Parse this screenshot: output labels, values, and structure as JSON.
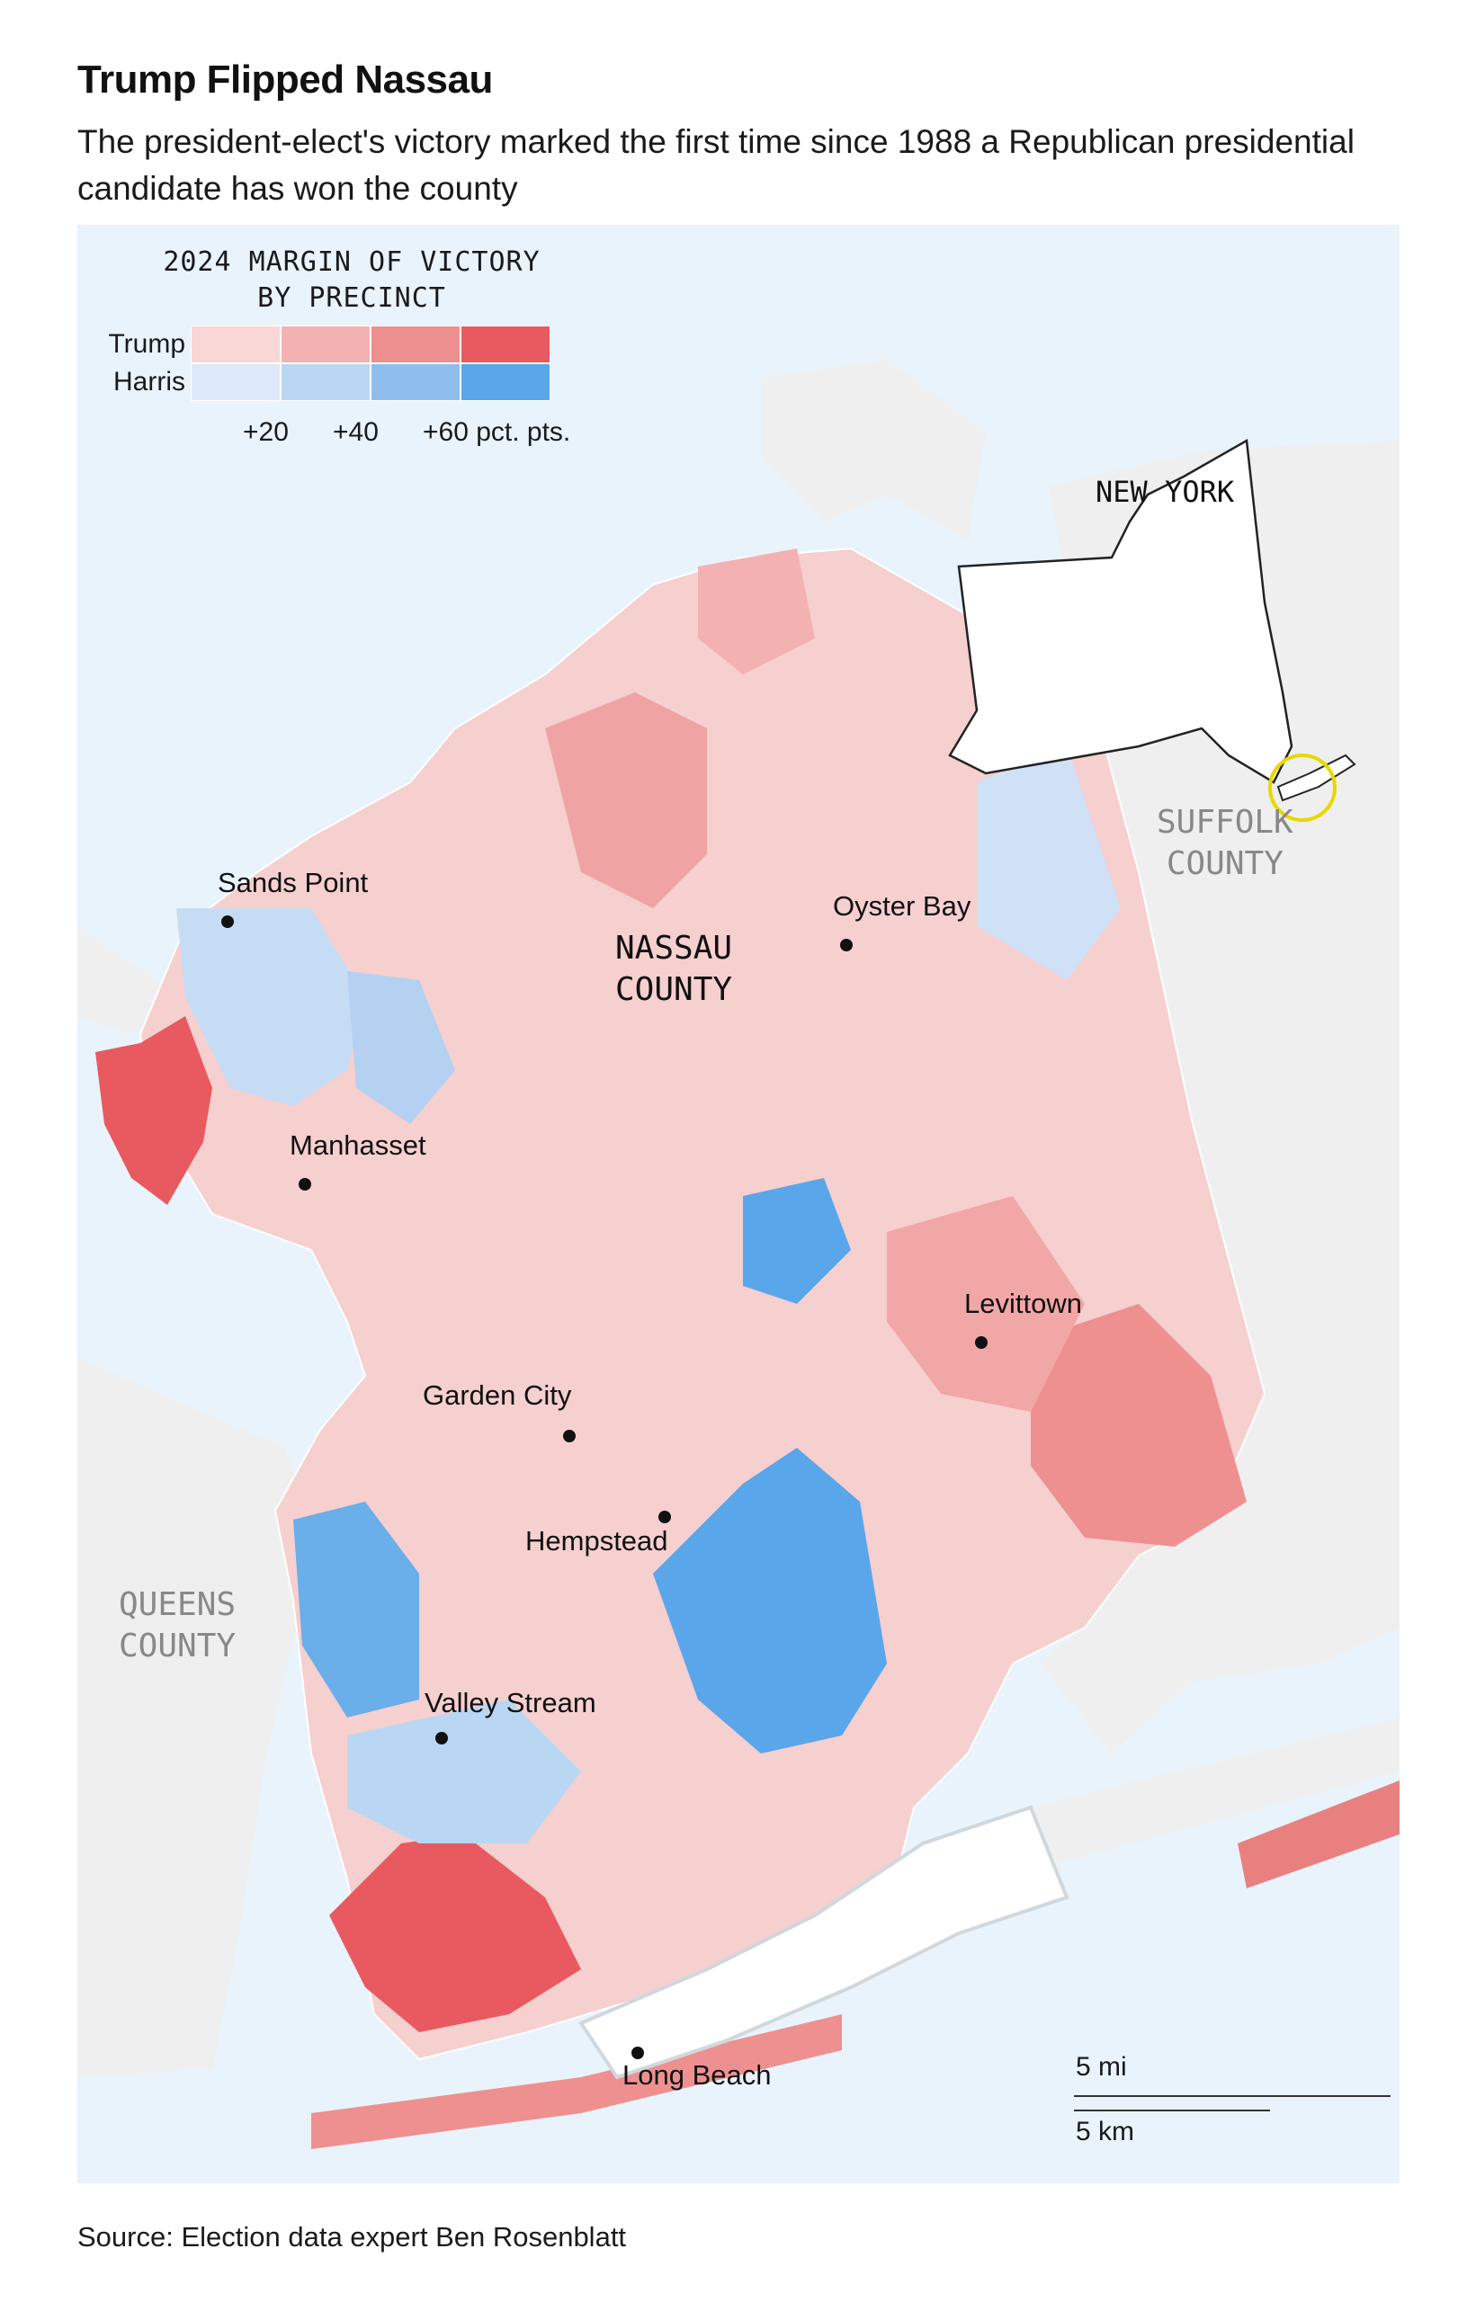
{
  "header": {
    "title": "Trump Flipped Nassau",
    "subtitle": "The president-elect's victory marked the first time since 1988 a Republican presidential candidate has won the county"
  },
  "legend": {
    "title_line1": "2024 MARGIN OF VICTORY",
    "title_line2": "BY PRECINCT",
    "rows": [
      {
        "label": "Trump",
        "colors": [
          "#f9d7d7",
          "#f4b1b1",
          "#ee8f8f",
          "#e85a5f"
        ]
      },
      {
        "label": "Harris",
        "colors": [
          "#dde9f8",
          "#b9d7f3",
          "#8fbeec",
          "#5aa6ea"
        ]
      }
    ],
    "ticks": [
      "+20",
      "+40",
      "+60 pct. pts."
    ]
  },
  "map": {
    "county_label_line1": "NASSAU",
    "county_label_line2": "COUNTY",
    "queens_line1": "QUEENS",
    "queens_line2": "COUNTY",
    "suffolk_line1": "SUFFOLK",
    "suffolk_line2": "COUNTY",
    "inset_label": "NEW YORK",
    "places": [
      {
        "name": "Sands Point"
      },
      {
        "name": "Oyster Bay"
      },
      {
        "name": "Manhasset"
      },
      {
        "name": "Levittown"
      },
      {
        "name": "Garden City"
      },
      {
        "name": "Hempstead"
      },
      {
        "name": "Valley Stream"
      },
      {
        "name": "Long Beach"
      }
    ],
    "colors": {
      "water": "#e9f3fb",
      "land": "#efefef",
      "inset_highlight": "#e8d800"
    }
  },
  "scale": {
    "miles": "5 mi",
    "km": "5 km"
  },
  "source": "Source: Election data expert Ben Rosenblatt"
}
